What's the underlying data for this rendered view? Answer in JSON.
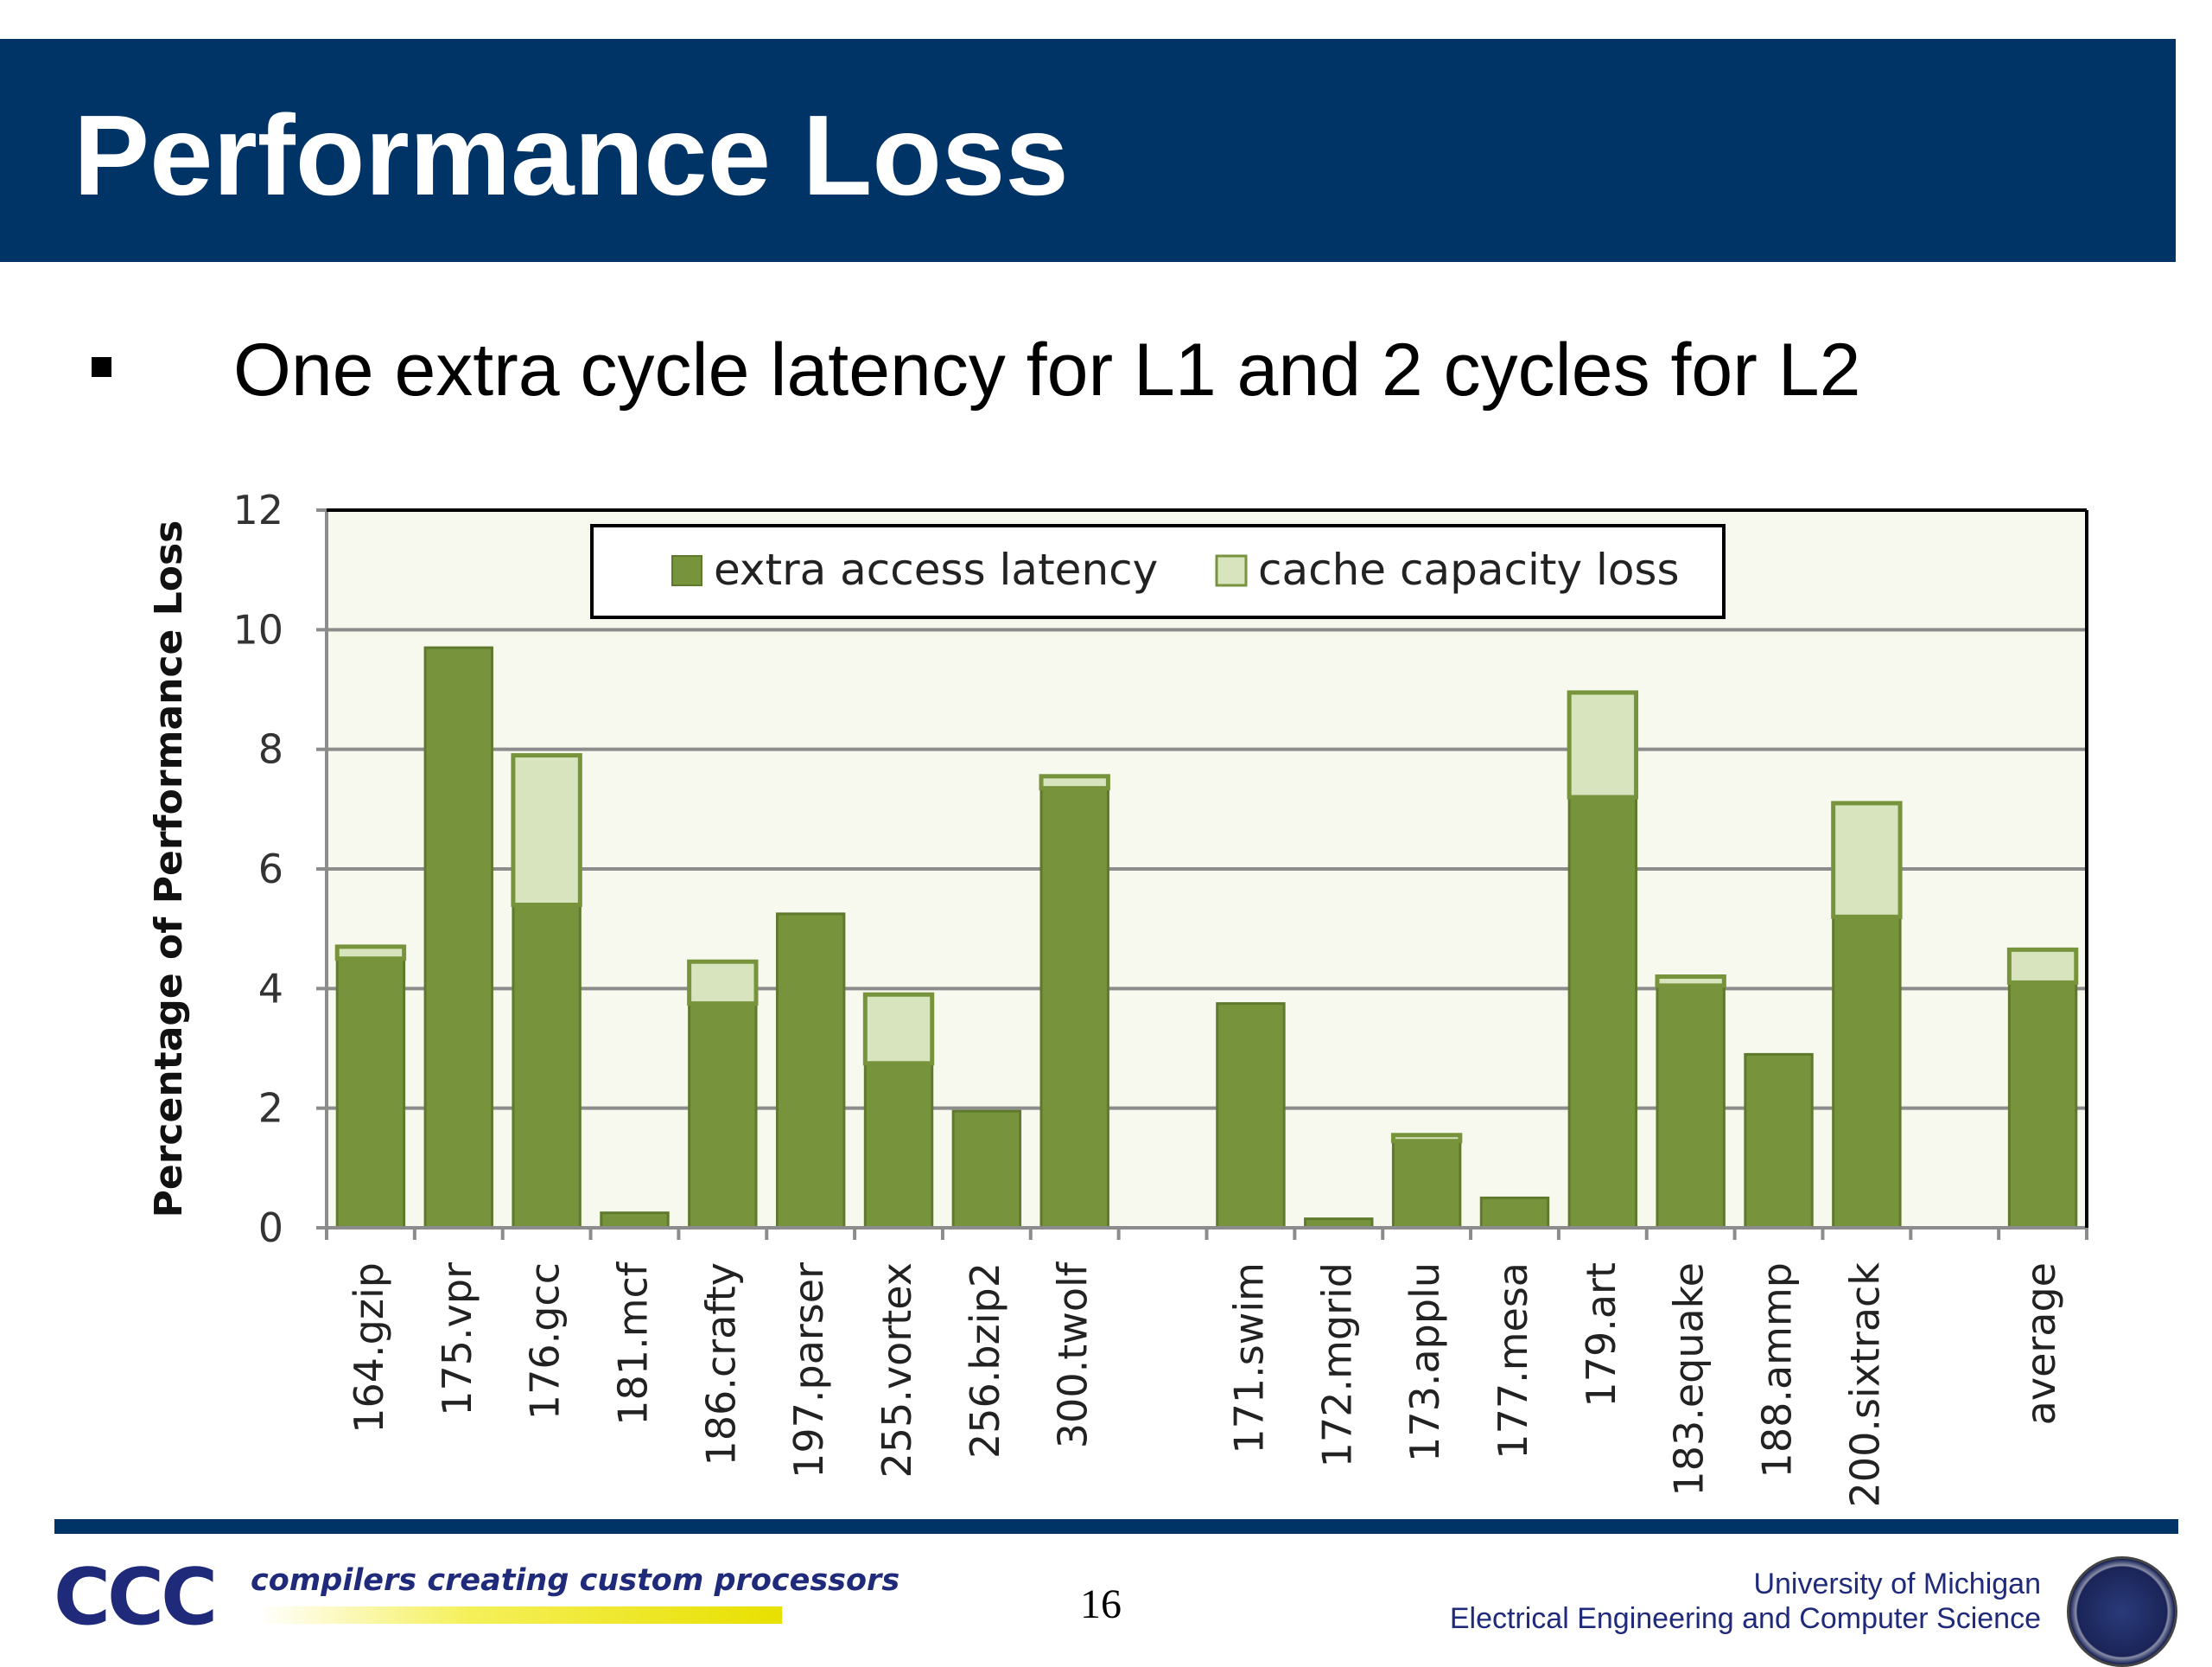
{
  "slide": {
    "title": "Performance Loss",
    "bullet": "One extra cycle latency for L1 and 2 cycles for L2",
    "page_number": "16"
  },
  "footer": {
    "logo_text": "CCC",
    "tagline": "compilers creating custom processors",
    "university_line1": "University of Michigan",
    "university_line2": "Electrical Engineering and Computer Science"
  },
  "colors": {
    "title_bar": "#003366",
    "series_dark": "#77933c",
    "series_light": "#d7e4bd",
    "plot_background": "#f7f9ef"
  },
  "chart_data": {
    "type": "bar",
    "stacked": true,
    "ylabel": "Percentage of Performance Loss",
    "xlabel": "",
    "ylim": [
      0,
      12
    ],
    "yticks": [
      0,
      2,
      4,
      6,
      8,
      10,
      12
    ],
    "grid": true,
    "legend_position": "top-center",
    "categories": [
      "164.gzip",
      "175.vpr",
      "176.gcc",
      "181.mcf",
      "186.crafty",
      "197.parser",
      "255.vortex",
      "256.bzip2",
      "300.twolf",
      "",
      "171.swim",
      "172.mgrid",
      "173.applu",
      "177.mesa",
      "179.art",
      "183.equake",
      "188.ammp",
      "200.sixtrack",
      "",
      "average"
    ],
    "series": [
      {
        "name": "extra access latency",
        "values": [
          4.5,
          9.7,
          5.4,
          0.25,
          3.75,
          5.25,
          2.75,
          1.95,
          7.35,
          null,
          3.75,
          0.15,
          1.45,
          0.5,
          7.2,
          4.05,
          2.9,
          5.2,
          null,
          4.1
        ]
      },
      {
        "name": "cache capacity loss",
        "values": [
          0.2,
          0.0,
          2.5,
          0.0,
          0.7,
          0.0,
          1.15,
          0.0,
          0.2,
          null,
          0.0,
          0.0,
          0.1,
          0.0,
          1.75,
          0.15,
          0.0,
          1.9,
          null,
          0.55
        ]
      }
    ]
  }
}
